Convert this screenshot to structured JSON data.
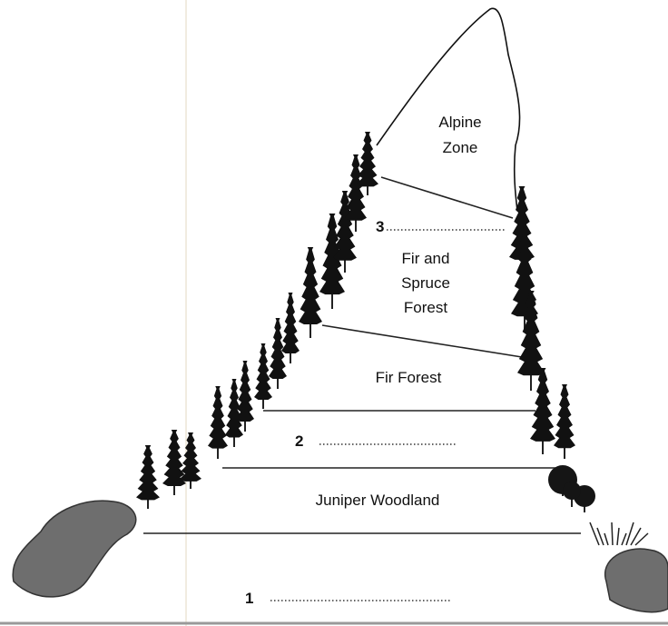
{
  "zones": [
    {
      "lines": [
        "Alpine",
        "Zone"
      ]
    },
    {
      "number": "3"
    },
    {
      "lines": [
        "Fir and",
        "Spruce",
        "Forest"
      ]
    },
    {
      "lines": [
        "Fir Forest"
      ]
    },
    {
      "number": "2"
    },
    {
      "lines": [
        "Juniper Woodland"
      ]
    },
    {
      "number": "1"
    }
  ]
}
